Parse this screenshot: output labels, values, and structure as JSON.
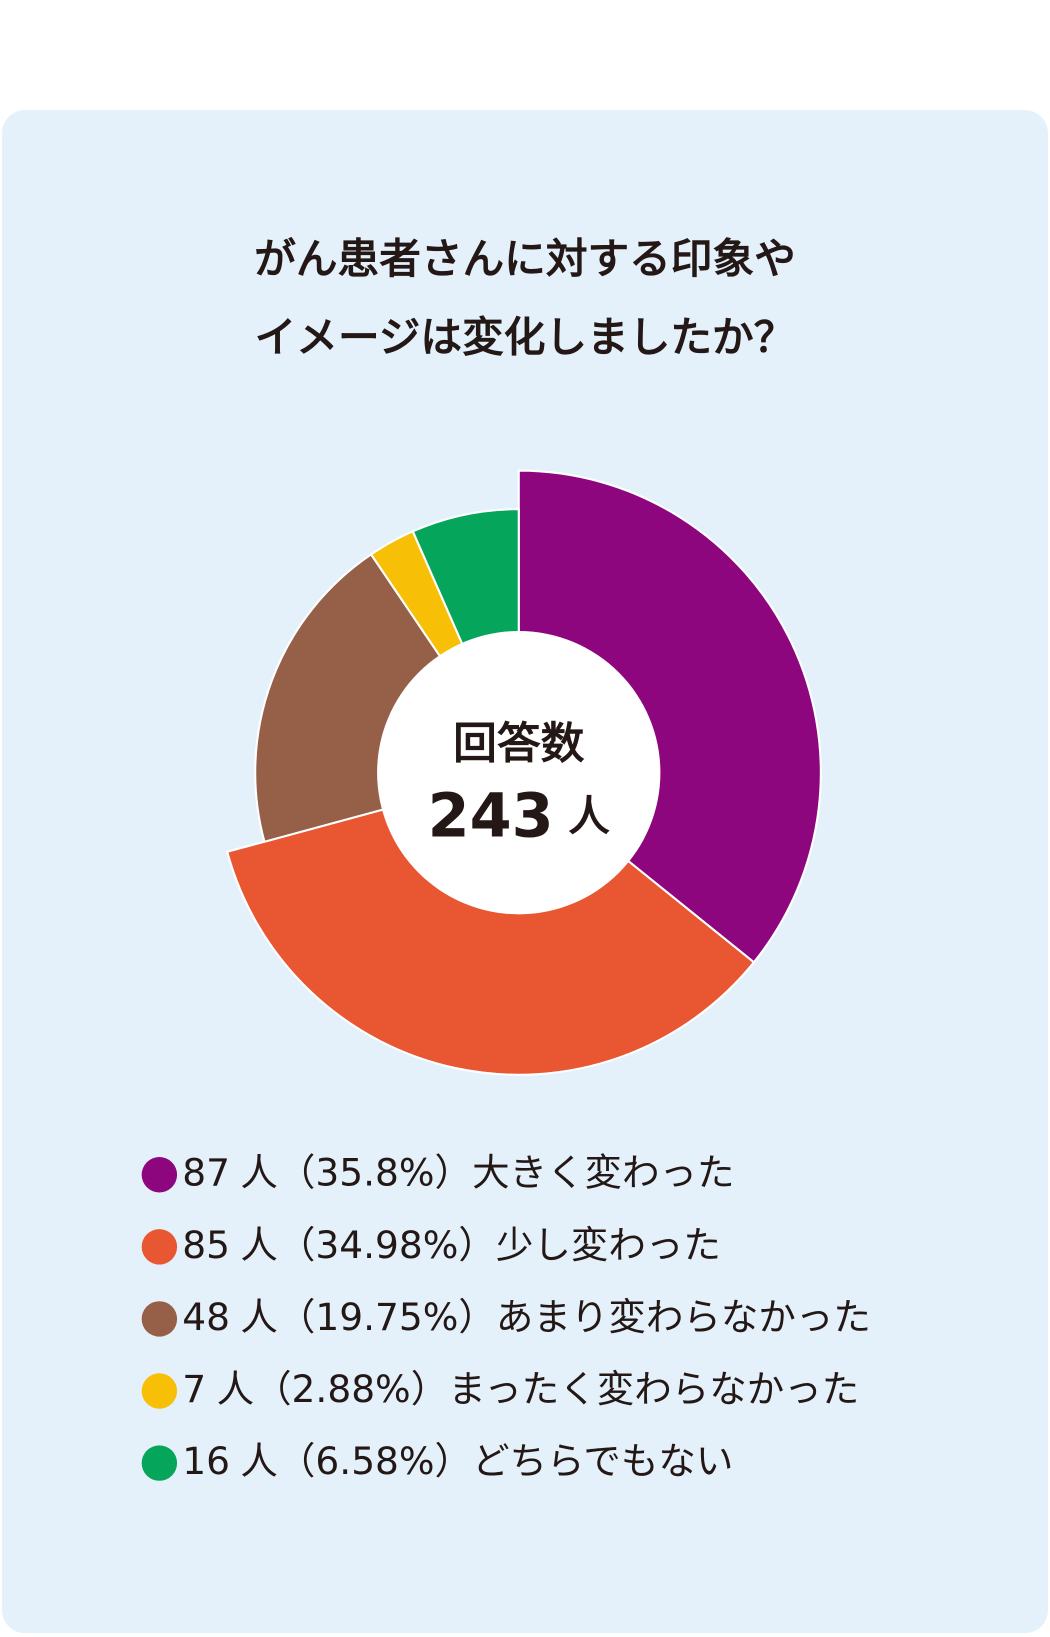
{
  "chart_data": {
    "type": "pie",
    "title": [
      "がん患者さんに対する印象や",
      "イメージは変化しましたか？"
    ],
    "center_label": "回答数",
    "total": 243,
    "unit": "人",
    "categories": [
      "大きく変わった",
      "少し変わった",
      "あまり変わらなかった",
      "まったく変わらなかった",
      "どちらでもない"
    ],
    "values": [
      87,
      85,
      48,
      7,
      16
    ],
    "percents": [
      35.8,
      34.98,
      19.75,
      2.88,
      6.58
    ],
    "percent_labels": [
      "（35.8%）",
      "（34.98%）",
      "（19.75%）",
      "（2.88%）",
      "（6.58%）"
    ],
    "colors": [
      "#8e067e",
      "#e85632",
      "#955f48",
      "#f7bf05",
      "#05a65c"
    ]
  }
}
